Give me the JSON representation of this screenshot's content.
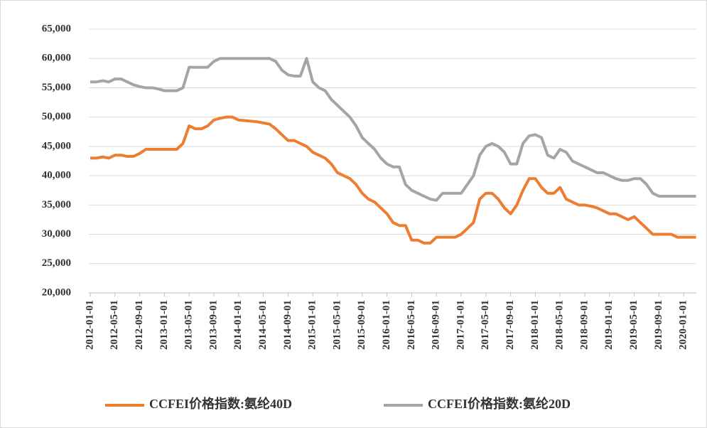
{
  "chart_data": {
    "type": "line",
    "categories": [
      "2012-01-01",
      null,
      null,
      null,
      "2012-05-01",
      null,
      null,
      null,
      "2012-09-01",
      null,
      null,
      null,
      "2013-01-01",
      null,
      null,
      null,
      "2013-05-01",
      null,
      null,
      null,
      "2013-09-01",
      null,
      null,
      null,
      "2014-01-01",
      null,
      null,
      null,
      "2014-05-01",
      null,
      null,
      null,
      "2014-09-01",
      null,
      null,
      null,
      "2015-01-01",
      null,
      null,
      null,
      "2015-05-01",
      null,
      null,
      null,
      "2015-09-01",
      null,
      null,
      null,
      "2016-01-01",
      null,
      null,
      null,
      "2016-05-01",
      null,
      null,
      null,
      "2016-09-01",
      null,
      null,
      null,
      "2017-01-01",
      null,
      null,
      null,
      "2017-05-01",
      null,
      null,
      null,
      "2017-09-01",
      null,
      null,
      null,
      "2018-01-01",
      null,
      null,
      null,
      "2018-05-01",
      null,
      null,
      null,
      "2018-09-01",
      null,
      null,
      null,
      "2019-01-01",
      null,
      null,
      null,
      "2019-05-01",
      null,
      null,
      null,
      "2019-09-01",
      null,
      null,
      null,
      "2020-01-01",
      null,
      null
    ],
    "series": [
      {
        "name": "CCFEI价格指数:氨纶40D",
        "color": "#ed7d31",
        "values": [
          43000,
          43000,
          43200,
          43000,
          43500,
          43500,
          43300,
          43300,
          43800,
          44500,
          44500,
          44500,
          44500,
          44500,
          44500,
          45500,
          48500,
          48000,
          48000,
          48500,
          49500,
          49800,
          50000,
          50000,
          49500,
          49400,
          49300,
          49200,
          49000,
          48800,
          48000,
          47000,
          46000,
          46000,
          45500,
          45000,
          44000,
          43500,
          43000,
          42000,
          40500,
          40000,
          39500,
          38500,
          37000,
          36000,
          35500,
          34500,
          33500,
          32000,
          31500,
          31500,
          29000,
          29000,
          28500,
          28500,
          29500,
          29500,
          29500,
          29500,
          30000,
          31000,
          32000,
          36000,
          37000,
          37000,
          36000,
          34500,
          33500,
          35000,
          37500,
          39500,
          39500,
          38000,
          37000,
          37000,
          38000,
          36000,
          35500,
          35000,
          35000,
          34800,
          34500,
          34000,
          33500,
          33500,
          33000,
          32500,
          33000,
          32000,
          31000,
          30000,
          30000,
          30000,
          30000,
          29500,
          29500,
          29500,
          29500
        ]
      },
      {
        "name": "CCFEI价格指数:氨纶20D",
        "color": "#a5a5a5",
        "values": [
          56000,
          56000,
          56200,
          56000,
          56500,
          56500,
          56000,
          55500,
          55200,
          55000,
          55000,
          54800,
          54500,
          54500,
          54500,
          55000,
          58500,
          58500,
          58500,
          58500,
          59500,
          60000,
          60000,
          60000,
          60000,
          60000,
          60000,
          60000,
          60000,
          60000,
          59500,
          58000,
          57200,
          57000,
          57000,
          60000,
          56000,
          55000,
          54500,
          53000,
          52000,
          51000,
          50000,
          48500,
          46500,
          45500,
          44500,
          43000,
          42000,
          41500,
          41500,
          38500,
          37500,
          37000,
          36500,
          36000,
          35800,
          37000,
          37000,
          37000,
          37000,
          38500,
          40000,
          43500,
          45000,
          45500,
          45000,
          44000,
          42000,
          42000,
          45500,
          46800,
          47000,
          46500,
          43500,
          43000,
          44500,
          44000,
          42500,
          42000,
          41500,
          41000,
          40500,
          40500,
          40000,
          39500,
          39200,
          39200,
          39500,
          39500,
          38500,
          37000,
          36500,
          36500,
          36500,
          36500,
          36500,
          36500,
          36500
        ]
      }
    ],
    "ylim": [
      20000,
      65000
    ],
    "yticks": [
      {
        "value": 20000,
        "label": "20,000"
      },
      {
        "value": 25000,
        "label": "25,000"
      },
      {
        "value": 30000,
        "label": "30,000"
      },
      {
        "value": 35000,
        "label": "35,000"
      },
      {
        "value": 40000,
        "label": "40,000"
      },
      {
        "value": 45000,
        "label": "45,000"
      },
      {
        "value": 50000,
        "label": "50,000"
      },
      {
        "value": 55000,
        "label": "55,000"
      },
      {
        "value": 60000,
        "label": "60,000"
      },
      {
        "value": 65000,
        "label": "65,000"
      }
    ],
    "grid": true
  }
}
